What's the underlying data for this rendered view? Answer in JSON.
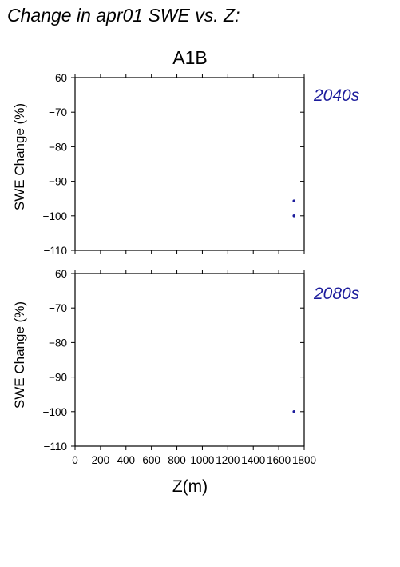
{
  "page_title": "Change in apr01 SWE vs. Z:",
  "scenario_label": "A1B",
  "colors": {
    "points": "#1c1c9c",
    "period_label": "#1c1c9c",
    "axis": "#000000"
  },
  "chart_data": [
    {
      "type": "scatter",
      "period_label": "2040s",
      "ylabel": "SWE Change (%)",
      "xlim": [
        0,
        1800
      ],
      "ylim": [
        -110,
        -60
      ],
      "yticks": [
        -60,
        -70,
        -80,
        -90,
        -100,
        -110
      ],
      "ytick_labels": [
        "−60",
        "−70",
        "−80",
        "−90",
        "−100",
        "−110"
      ],
      "x_tick_labels_shown": false,
      "series": [
        {
          "points": [
            {
              "x": 1720,
              "y": -95.7
            },
            {
              "x": 1720,
              "y": -100
            }
          ]
        }
      ]
    },
    {
      "type": "scatter",
      "period_label": "2080s",
      "ylabel": "SWE Change (%)",
      "xlabel": "Z(m)",
      "xlim": [
        0,
        1800
      ],
      "ylim": [
        -110,
        -60
      ],
      "xticks": [
        0,
        200,
        400,
        600,
        800,
        1000,
        1200,
        1400,
        1600,
        1800
      ],
      "xtick_labels": [
        "0",
        "200",
        "400",
        "600",
        "800",
        "1000",
        "1200",
        "1400",
        "1600",
        "1800"
      ],
      "yticks": [
        -60,
        -70,
        -80,
        -90,
        -100,
        -110
      ],
      "ytick_labels": [
        "−60",
        "−70",
        "−80",
        "−90",
        "−100",
        "−110"
      ],
      "x_tick_labels_shown": true,
      "series": [
        {
          "points": [
            {
              "x": 1720,
              "y": -100
            }
          ]
        }
      ]
    }
  ]
}
